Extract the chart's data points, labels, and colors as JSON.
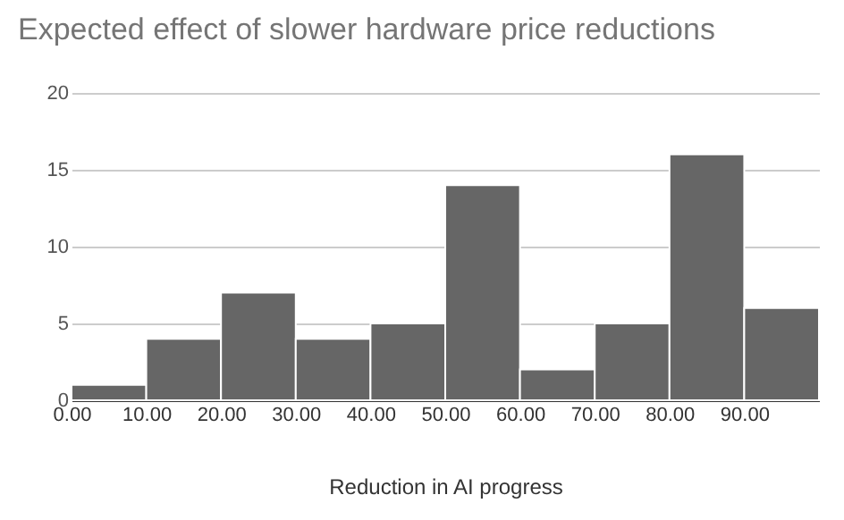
{
  "chart_data": {
    "type": "histogram",
    "title": "Expected effect of slower hardware price reductions",
    "xlabel": "Reduction in AI progress",
    "bins": [
      0,
      10,
      20,
      30,
      40,
      50,
      60,
      70,
      80,
      90,
      100
    ],
    "values": [
      1,
      4,
      7,
      4,
      5,
      14,
      2,
      5,
      16,
      6
    ],
    "color": "#666666",
    "xlim": [
      0,
      100
    ],
    "xticks": [
      {
        "value": 0,
        "label": "0.00"
      },
      {
        "value": 10,
        "label": "10.00"
      },
      {
        "value": 20,
        "label": "20.00"
      },
      {
        "value": 30,
        "label": "30.00"
      },
      {
        "value": 40,
        "label": "40.00"
      },
      {
        "value": 50,
        "label": "50.00"
      },
      {
        "value": 60,
        "label": "60.00"
      },
      {
        "value": 70,
        "label": "70.00"
      },
      {
        "value": 80,
        "label": "80.00"
      },
      {
        "value": 90,
        "label": "90.00"
      }
    ],
    "ylim": [
      0,
      20
    ],
    "yticks": [
      0,
      5,
      10,
      15,
      20
    ],
    "grid": "y"
  }
}
